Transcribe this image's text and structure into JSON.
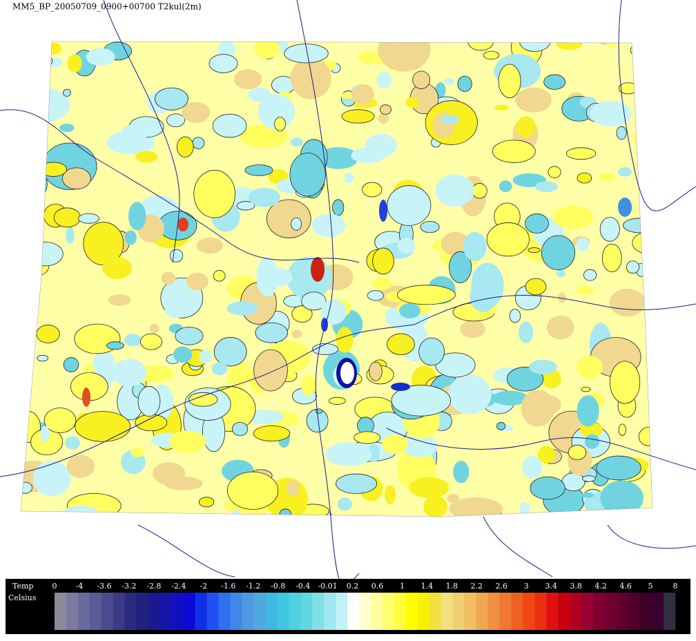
{
  "header": {
    "title": "MM5_BP_20050709_0900+00700 T2kul(2m)"
  },
  "legend": {
    "name": "Temp",
    "unit": "Celsius",
    "labels": [
      "0",
      "-4",
      "-3.6",
      "-3.2",
      "-2.8",
      "-2.4",
      "-2",
      "-1.6",
      "-1.2",
      "-0.8",
      "-0.4",
      "-0.01",
      "0.2",
      "0.6",
      "1",
      "1.4",
      "1.8",
      "2.2",
      "2.6",
      "3",
      "3.4",
      "3.8",
      "4.2",
      "4.6",
      "5",
      "8"
    ],
    "colors": [
      "#000000",
      "#8a8a99",
      "#7a7aa0",
      "#6a6a9e",
      "#5a5a96",
      "#4a4a8e",
      "#3a3a86",
      "#2a2a80",
      "#20207e",
      "#1a1a90",
      "#1515a8",
      "#1010c0",
      "#0a0ad8",
      "#1030e8",
      "#2050f0",
      "#3070f0",
      "#4088e8",
      "#5098e0",
      "#50a8e0",
      "#40b8e0",
      "#40c8e0",
      "#50d0e0",
      "#60d8e0",
      "#80e0e8",
      "#a0e8f0",
      "#c0f0f8",
      "#ffffff",
      "#ffffd0",
      "#ffffa0",
      "#ffff70",
      "#ffff40",
      "#ffff00",
      "#f8f000",
      "#f0e040",
      "#f0e080",
      "#f0d070",
      "#f0c060",
      "#f0a850",
      "#f09040",
      "#f07830",
      "#f06020",
      "#f04810",
      "#e83010",
      "#e01010",
      "#c80010",
      "#b00020",
      "#980030",
      "#800030",
      "#700030",
      "#600030",
      "#500028",
      "#400028",
      "#380030",
      "#303040"
    ]
  }
}
